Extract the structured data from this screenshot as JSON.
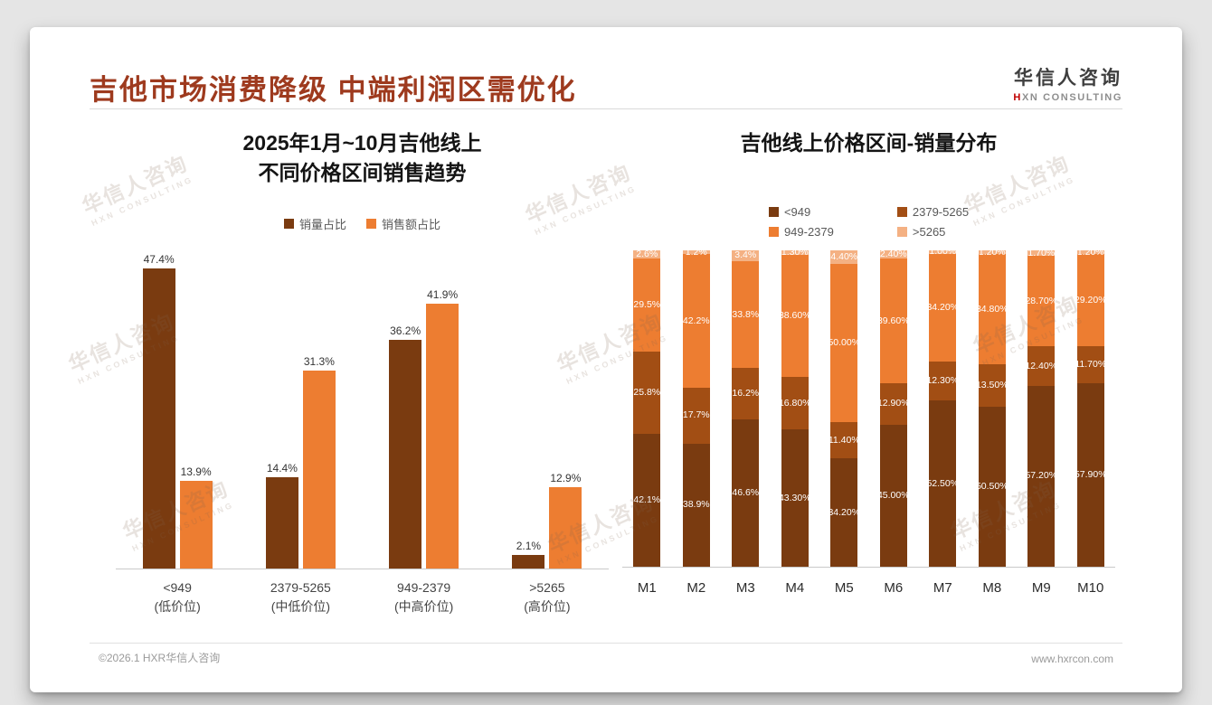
{
  "page": {
    "title": "吉他市场消费降级 中端利润区需优化",
    "footer_left": "©2026.1 HXR华信人咨询",
    "footer_right": "www.hxrcon.com"
  },
  "logo": {
    "line1": "华信人咨询",
    "line2_accent": "H",
    "line2_rest": "XN CONSULTING"
  },
  "watermark": {
    "line1": "华信人咨询",
    "line2": "HXN CONSULTING"
  },
  "colors": {
    "title": "#9E3A1E",
    "dark_brown": "#7A3B10",
    "rust": "#A24E14",
    "orange": "#ED7D31",
    "light_orange": "#F4B183"
  },
  "chart_data": [
    {
      "type": "bar",
      "title": "2025年1月~10月吉他线上 不同价格区间销售趋势",
      "title_lines": [
        "2025年1月~10月吉他线上",
        "不同价格区间销售趋势"
      ],
      "categories": [
        {
          "line1": "<949",
          "line2": "(低价位)"
        },
        {
          "line1": "2379-5265",
          "line2": "(中低价位)"
        },
        {
          "line1": "949-2379",
          "line2": "(中高价位)"
        },
        {
          "line1": ">5265",
          "line2": "(高价位)"
        }
      ],
      "series": [
        {
          "name": "销量占比",
          "color": "#7A3B10",
          "values": [
            47.4,
            14.4,
            36.2,
            2.1
          ]
        },
        {
          "name": "销售额占比",
          "color": "#ED7D31",
          "values": [
            13.9,
            31.3,
            41.9,
            12.9
          ]
        }
      ],
      "value_suffix": "%",
      "ylim": [
        0,
        50
      ],
      "grid": false,
      "legend_position": "top"
    },
    {
      "type": "stacked-bar",
      "title": "吉他线上价格区间-销量分布",
      "categories": [
        "M1",
        "M2",
        "M3",
        "M4",
        "M5",
        "M6",
        "M7",
        "M8",
        "M9",
        "M10"
      ],
      "series": [
        {
          "name": "<949",
          "color": "#7A3B10",
          "values": [
            42.1,
            38.9,
            46.6,
            43.3,
            34.2,
            45.0,
            52.5,
            50.5,
            57.2,
            57.9
          ],
          "labels": [
            "42.1%",
            "38.9%",
            "46.6%",
            "43.30%",
            "34.20%",
            "45.00%",
            "52.50%",
            "50.50%",
            "57.20%",
            "57.90%"
          ]
        },
        {
          "name": "2379-5265",
          "color": "#A24E14",
          "values": [
            25.8,
            17.7,
            16.2,
            16.8,
            11.4,
            12.9,
            12.3,
            13.5,
            12.4,
            11.7
          ],
          "labels": [
            "25.8%",
            "17.7%",
            "16.2%",
            "16.80%",
            "11.40%",
            "12.90%",
            "12.30%",
            "13.50%",
            "12.40%",
            "11.70%"
          ]
        },
        {
          "name": "949-2379",
          "color": "#ED7D31",
          "values": [
            29.5,
            42.2,
            33.8,
            38.6,
            50.0,
            39.6,
            34.2,
            34.8,
            28.7,
            29.2
          ],
          "labels": [
            "29.5%",
            "42.2%",
            "33.8%",
            "38.60%",
            "50.00%",
            "39.60%",
            "34.20%",
            "34.80%",
            "28.70%",
            "29.20%"
          ]
        },
        {
          "name": ">5265",
          "color": "#F4B183",
          "values": [
            2.6,
            1.2,
            3.4,
            1.3,
            4.4,
            2.4,
            1.0,
            1.2,
            1.7,
            1.2
          ],
          "labels": [
            "2.6%",
            "1.2%",
            "3.4%",
            "1.30%",
            "4.40%",
            "2.40%",
            "1.00%",
            "1.20%",
            "1.70%",
            "1.20%"
          ]
        }
      ],
      "unit": "%",
      "ylim": [
        0,
        100
      ],
      "grid": false,
      "legend_position": "top"
    }
  ]
}
